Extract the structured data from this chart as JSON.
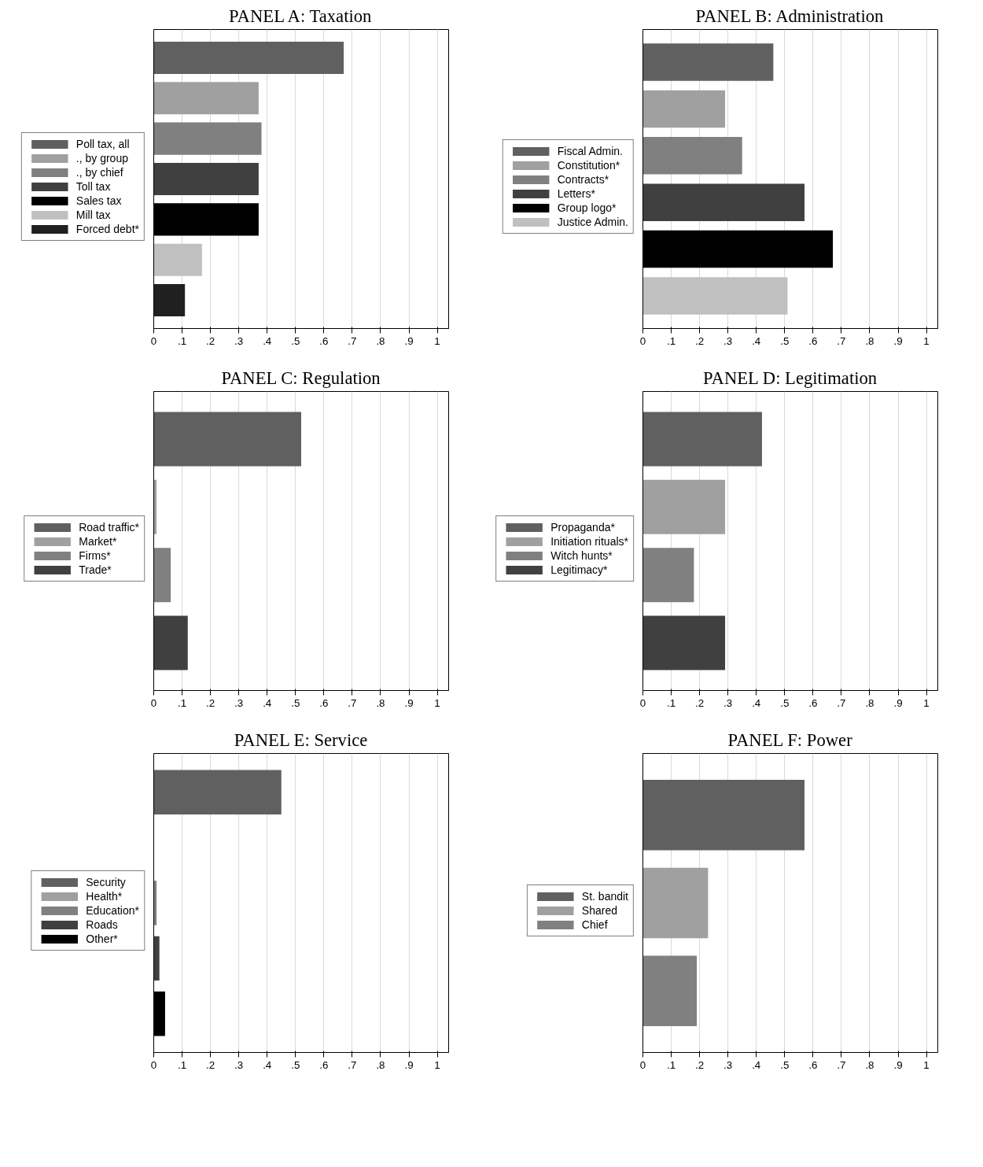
{
  "chart_data": [
    {
      "type": "bar",
      "orientation": "horizontal",
      "title": "PANEL A: Taxation",
      "categories": [
        null,
        null,
        null,
        null,
        null,
        null,
        null
      ],
      "series": [
        {
          "name": "Poll tax, all",
          "color": "#606060",
          "values": [
            0.67,
            null,
            null,
            null,
            null,
            null,
            null
          ]
        },
        {
          "name": "., by group",
          "color": "#a0a0a0",
          "values": [
            null,
            0.37,
            null,
            null,
            null,
            null,
            null
          ]
        },
        {
          "name": "., by chief",
          "color": "#808080",
          "values": [
            null,
            null,
            0.38,
            null,
            null,
            null,
            null
          ]
        },
        {
          "name": "Toll tax",
          "color": "#404040",
          "values": [
            null,
            null,
            null,
            0.37,
            null,
            null,
            null
          ]
        },
        {
          "name": "Sales tax",
          "color": "#000000",
          "values": [
            null,
            null,
            null,
            null,
            0.37,
            null,
            null
          ]
        },
        {
          "name": "Mill tax",
          "color": "#c0c0c0",
          "values": [
            null,
            null,
            null,
            null,
            null,
            0.17,
            null
          ]
        },
        {
          "name": "Forced debt*",
          "color": "#202020",
          "values": [
            null,
            null,
            null,
            null,
            null,
            null,
            0.11
          ]
        }
      ],
      "xlim": [
        0,
        1.04
      ],
      "xticks": [
        0,
        {
          "value": 0.1,
          "label": ".1"
        },
        {
          "value": 0.2,
          "label": ".2"
        },
        {
          "value": 0.3,
          "label": ".3"
        },
        {
          "value": 0.4,
          "label": ".4"
        },
        {
          "value": 0.5,
          "label": ".5"
        },
        {
          "value": 0.6,
          "label": ".6"
        },
        {
          "value": 0.7,
          "label": ".7"
        },
        {
          "value": 0.8,
          "label": ".8"
        },
        {
          "value": 0.9,
          "label": ".9"
        },
        1
      ],
      "grid": "x",
      "legend": "left"
    },
    {
      "type": "bar",
      "orientation": "horizontal",
      "title": "PANEL B: Administration",
      "categories": [
        null,
        null,
        null,
        null,
        null,
        null
      ],
      "series": [
        {
          "name": "Fiscal Admin.",
          "color": "#606060",
          "values": [
            0.46,
            null,
            null,
            null,
            null,
            null
          ]
        },
        {
          "name": "Constitution*",
          "color": "#a0a0a0",
          "values": [
            null,
            0.29,
            null,
            null,
            null,
            null
          ]
        },
        {
          "name": "Contracts*",
          "color": "#808080",
          "values": [
            null,
            null,
            0.35,
            null,
            null,
            null
          ]
        },
        {
          "name": "Letters*",
          "color": "#404040",
          "values": [
            null,
            null,
            null,
            0.57,
            null,
            null
          ]
        },
        {
          "name": "Group logo*",
          "color": "#000000",
          "values": [
            null,
            null,
            null,
            null,
            0.67,
            null
          ]
        },
        {
          "name": "Justice Admin.",
          "color": "#c0c0c0",
          "values": [
            null,
            null,
            null,
            null,
            null,
            0.51
          ]
        }
      ],
      "xlim": [
        0,
        1.04
      ],
      "xticks": [
        0,
        {
          "value": 0.1,
          "label": ".1"
        },
        {
          "value": 0.2,
          "label": ".2"
        },
        {
          "value": 0.3,
          "label": ".3"
        },
        {
          "value": 0.4,
          "label": ".4"
        },
        {
          "value": 0.5,
          "label": ".5"
        },
        {
          "value": 0.6,
          "label": ".6"
        },
        {
          "value": 0.7,
          "label": ".7"
        },
        {
          "value": 0.8,
          "label": ".8"
        },
        {
          "value": 0.9,
          "label": ".9"
        },
        1
      ],
      "grid": "x",
      "legend": "left"
    },
    {
      "type": "bar",
      "orientation": "horizontal",
      "title": "PANEL C: Regulation",
      "categories": [
        null,
        null,
        null,
        null
      ],
      "series": [
        {
          "name": "Road traffic*",
          "color": "#606060",
          "values": [
            0.52,
            null,
            null,
            null
          ]
        },
        {
          "name": "Market*",
          "color": "#a0a0a0",
          "values": [
            null,
            0.01,
            null,
            null
          ]
        },
        {
          "name": "Firms*",
          "color": "#808080",
          "values": [
            null,
            null,
            0.06,
            null
          ]
        },
        {
          "name": "Trade*",
          "color": "#404040",
          "values": [
            null,
            null,
            null,
            0.12
          ]
        }
      ],
      "xlim": [
        0,
        1.04
      ],
      "xticks": [
        0,
        {
          "value": 0.1,
          "label": ".1"
        },
        {
          "value": 0.2,
          "label": ".2"
        },
        {
          "value": 0.3,
          "label": ".3"
        },
        {
          "value": 0.4,
          "label": ".4"
        },
        {
          "value": 0.5,
          "label": ".5"
        },
        {
          "value": 0.6,
          "label": ".6"
        },
        {
          "value": 0.7,
          "label": ".7"
        },
        {
          "value": 0.8,
          "label": ".8"
        },
        {
          "value": 0.9,
          "label": ".9"
        },
        1
      ],
      "grid": "x",
      "legend": "left"
    },
    {
      "type": "bar",
      "orientation": "horizontal",
      "title": "PANEL D: Legitimation",
      "categories": [
        null,
        null,
        null,
        null
      ],
      "series": [
        {
          "name": "Propaganda*",
          "color": "#606060",
          "values": [
            0.42,
            null,
            null,
            null
          ]
        },
        {
          "name": "Initiation rituals*",
          "color": "#a0a0a0",
          "values": [
            null,
            0.29,
            null,
            null
          ]
        },
        {
          "name": "Witch hunts*",
          "color": "#808080",
          "values": [
            null,
            null,
            0.18,
            null
          ]
        },
        {
          "name": "Legitimacy*",
          "color": "#404040",
          "values": [
            null,
            null,
            null,
            0.29
          ]
        }
      ],
      "xlim": [
        0,
        1.04
      ],
      "xticks": [
        0,
        {
          "value": 0.1,
          "label": ".1"
        },
        {
          "value": 0.2,
          "label": ".2"
        },
        {
          "value": 0.3,
          "label": ".3"
        },
        {
          "value": 0.4,
          "label": ".4"
        },
        {
          "value": 0.5,
          "label": ".5"
        },
        {
          "value": 0.6,
          "label": ".6"
        },
        {
          "value": 0.7,
          "label": ".7"
        },
        {
          "value": 0.8,
          "label": ".8"
        },
        {
          "value": 0.9,
          "label": ".9"
        },
        1
      ],
      "grid": "x",
      "legend": "left"
    },
    {
      "type": "bar",
      "orientation": "horizontal",
      "title": "PANEL E: Service",
      "categories": [
        null,
        null,
        null,
        null,
        null
      ],
      "series": [
        {
          "name": "Security",
          "color": "#606060",
          "values": [
            0.45,
            null,
            null,
            null,
            null
          ]
        },
        {
          "name": "Health*",
          "color": "#a0a0a0",
          "values": [
            null,
            0,
            null,
            null,
            null
          ]
        },
        {
          "name": "Education*",
          "color": "#808080",
          "values": [
            null,
            null,
            0.01,
            null,
            null
          ]
        },
        {
          "name": "Roads",
          "color": "#404040",
          "values": [
            null,
            null,
            null,
            0.02,
            null
          ]
        },
        {
          "name": "Other*",
          "color": "#000000",
          "values": [
            null,
            null,
            null,
            null,
            0.04
          ]
        }
      ],
      "xlim": [
        0,
        1.04
      ],
      "xticks": [
        0,
        {
          "value": 0.1,
          "label": ".1"
        },
        {
          "value": 0.2,
          "label": ".2"
        },
        {
          "value": 0.3,
          "label": ".3"
        },
        {
          "value": 0.4,
          "label": ".4"
        },
        {
          "value": 0.5,
          "label": ".5"
        },
        {
          "value": 0.6,
          "label": ".6"
        },
        {
          "value": 0.7,
          "label": ".7"
        },
        {
          "value": 0.8,
          "label": ".8"
        },
        {
          "value": 0.9,
          "label": ".9"
        },
        1
      ],
      "grid": "x",
      "legend": "left"
    },
    {
      "type": "bar",
      "orientation": "horizontal",
      "title": "PANEL F: Power",
      "categories": [
        null,
        null,
        null
      ],
      "series": [
        {
          "name": "St. bandit",
          "color": "#606060",
          "values": [
            0.57,
            null,
            null
          ]
        },
        {
          "name": "Shared",
          "color": "#a0a0a0",
          "values": [
            null,
            0.23,
            null
          ]
        },
        {
          "name": "Chief",
          "color": "#808080",
          "values": [
            null,
            null,
            0.19
          ]
        }
      ],
      "xlim": [
        0,
        1.04
      ],
      "xticks": [
        0,
        {
          "value": 0.1,
          "label": ".1"
        },
        {
          "value": 0.2,
          "label": ".2"
        },
        {
          "value": 0.3,
          "label": ".3"
        },
        {
          "value": 0.4,
          "label": ".4"
        },
        {
          "value": 0.5,
          "label": ".5"
        },
        {
          "value": 0.6,
          "label": ".6"
        },
        {
          "value": 0.7,
          "label": ".7"
        },
        {
          "value": 0.8,
          "label": ".8"
        },
        {
          "value": 0.9,
          "label": ".9"
        },
        1
      ],
      "grid": "x",
      "legend": "left"
    }
  ]
}
